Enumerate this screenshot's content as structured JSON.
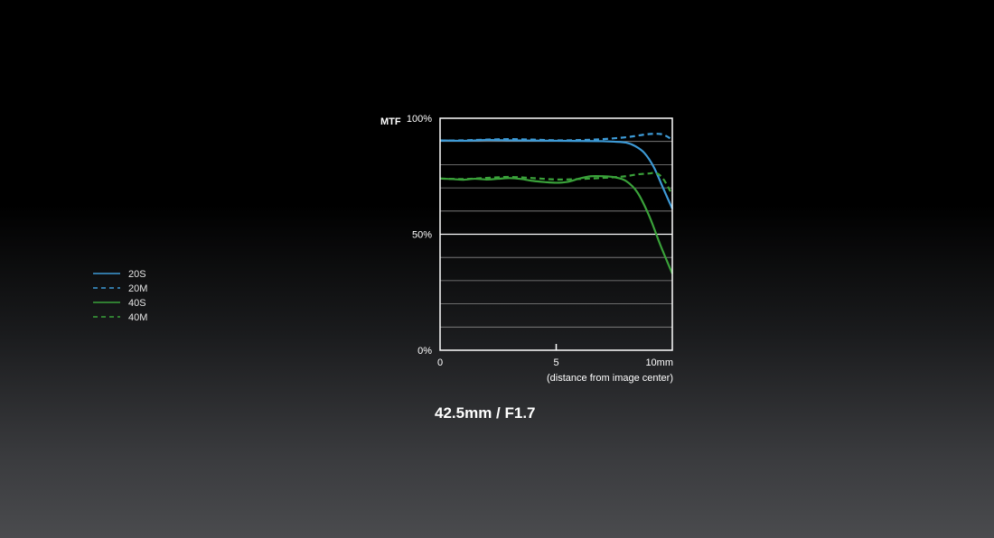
{
  "caption": "42.5mm / F1.7",
  "colors": {
    "background": "#000000",
    "grid": "#8a8a8a",
    "frame": "#ffffff",
    "blue": "#3d9ad6",
    "green": "#3aa23a"
  },
  "chart_data": {
    "type": "line",
    "ylabel": "MTF",
    "xlabel": "(distance from image center)",
    "xlim": [
      0,
      10
    ],
    "ylim": [
      0,
      100
    ],
    "x_ticks": [
      {
        "value": 0,
        "label": "0"
      },
      {
        "value": 5,
        "label": "5"
      },
      {
        "value": 10,
        "label": "10mm"
      }
    ],
    "y_ticks": [
      {
        "value": 0,
        "label": "0%"
      },
      {
        "value": 50,
        "label": "50%"
      },
      {
        "value": 100,
        "label": "100%"
      }
    ],
    "grid": true,
    "grid_step": 10,
    "legend_position": "left",
    "series": [
      {
        "name": "20S",
        "color": "#3d9ad6",
        "dash": "solid",
        "x": [
          0,
          1,
          2,
          3,
          4,
          5,
          6,
          7,
          7.5,
          8,
          8.4,
          8.8,
          9.2,
          9.6,
          10
        ],
        "values": [
          90.5,
          90.3,
          90.6,
          90.5,
          90.4,
          90.3,
          90.2,
          90.1,
          89.9,
          89.5,
          88,
          85,
          79,
          70,
          61
        ]
      },
      {
        "name": "20M",
        "color": "#3d9ad6",
        "dash": "dashed",
        "x": [
          0,
          1,
          2,
          3,
          4,
          5,
          6,
          7,
          8,
          8.5,
          9,
          9.5,
          9.8,
          10
        ],
        "values": [
          90.3,
          90.5,
          90.8,
          91,
          90.8,
          90.5,
          90.6,
          91,
          91.8,
          92.5,
          93.2,
          93.2,
          92,
          90.5
        ]
      },
      {
        "name": "40S",
        "color": "#3aa23a",
        "dash": "solid",
        "x": [
          0,
          0.5,
          1,
          1.5,
          2,
          2.5,
          3,
          3.5,
          4,
          4.5,
          5,
          5.5,
          6,
          6.5,
          7,
          7.5,
          8,
          8.5,
          9,
          9.5,
          10
        ],
        "values": [
          74,
          73.8,
          73.5,
          73.9,
          73.6,
          73.9,
          74.2,
          73.8,
          73,
          72.5,
          72.2,
          72.6,
          74,
          75,
          75,
          74.6,
          73,
          68,
          58,
          45,
          33
        ]
      },
      {
        "name": "40M",
        "color": "#3aa23a",
        "dash": "dashed",
        "x": [
          0,
          1,
          2,
          3,
          4,
          5,
          6,
          7,
          7.5,
          8,
          8.5,
          9,
          9.3,
          9.6,
          10
        ],
        "values": [
          74,
          73.8,
          74.3,
          74.7,
          74.2,
          73.6,
          73.8,
          74.3,
          74.6,
          75,
          75.8,
          76.2,
          76.4,
          74,
          67
        ]
      }
    ]
  }
}
